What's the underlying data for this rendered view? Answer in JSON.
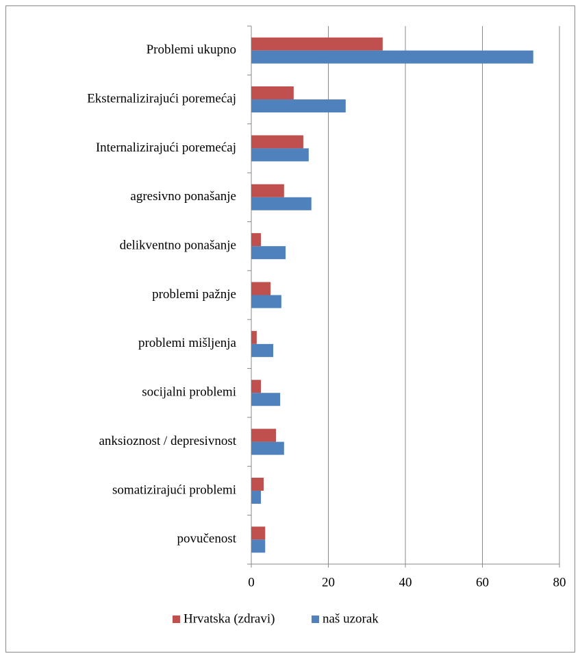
{
  "chart_data": {
    "type": "barh",
    "categories": [
      "Problemi ukupno",
      "Eksternalizirajući poremećaj",
      "Internalizirajući poremećaj",
      "agresivno ponašanje",
      "delikventno ponašanje",
      "problemi pažnje",
      "problemi mišljenja",
      "socijalni problemi",
      "anksioznost / depresivnost",
      "somatizirajući problemi",
      "povučenost"
    ],
    "series": [
      {
        "name": "Hrvatska (zdravi)",
        "color": "#c0504d",
        "values": [
          34.1,
          11.0,
          13.5,
          8.5,
          2.5,
          5.0,
          1.4,
          2.5,
          6.4,
          3.2,
          3.6
        ]
      },
      {
        "name": "naš uzorak",
        "color": "#4f81bd",
        "values": [
          73.2,
          24.5,
          14.9,
          15.6,
          8.9,
          7.8,
          5.7,
          7.5,
          8.5,
          2.5,
          3.6
        ]
      }
    ],
    "xlim": [
      0,
      80
    ],
    "xticks": [
      0,
      20,
      40,
      60,
      80
    ],
    "grid": true,
    "legend": "bottom"
  }
}
